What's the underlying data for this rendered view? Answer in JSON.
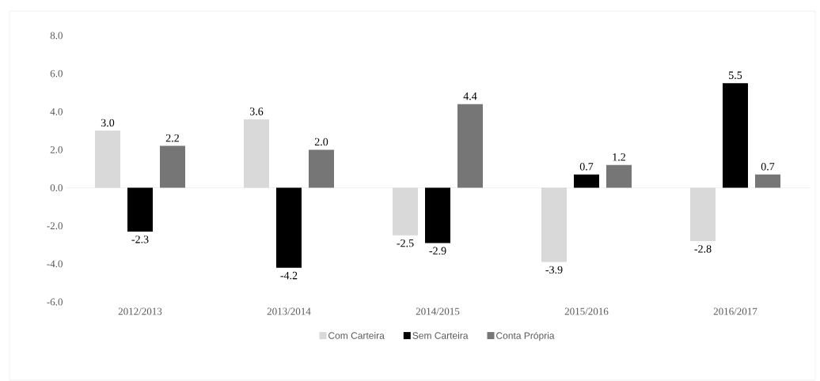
{
  "chart_data": {
    "type": "bar",
    "categories": [
      "2012/2013",
      "2013/2014",
      "2014/2015",
      "2015/2016",
      "2016/2017"
    ],
    "series": [
      {
        "name": "Com Carteira",
        "color": "#d9d9d9",
        "values": [
          3.0,
          3.6,
          -2.5,
          -3.9,
          -2.8
        ],
        "value_labels": [
          "3.0",
          "3.6",
          "-2.5",
          "-3.9",
          "-2.8"
        ]
      },
      {
        "name": "Sem Carteira",
        "color": "#000000",
        "values": [
          -2.3,
          -4.2,
          -2.9,
          0.7,
          5.5
        ],
        "value_labels": [
          "-2.3",
          "-4.2",
          "-2.9",
          "0.7",
          "5.5"
        ]
      },
      {
        "name": "Conta Própria",
        "color": "#767676",
        "values": [
          2.2,
          2.0,
          4.4,
          1.2,
          0.7
        ],
        "value_labels": [
          "2.2",
          "2.0",
          "4.4",
          "1.2",
          "0.7"
        ]
      }
    ],
    "ylim": [
      -6,
      8
    ],
    "yticks": [
      {
        "value": -6,
        "label": "-6.0"
      },
      {
        "value": -4,
        "label": "-4.0"
      },
      {
        "value": -2,
        "label": "-2.0"
      },
      {
        "value": 0,
        "label": "0.0"
      },
      {
        "value": 2,
        "label": "2.0"
      },
      {
        "value": 4,
        "label": "4.0"
      },
      {
        "value": 6,
        "label": "6.0"
      },
      {
        "value": 8,
        "label": "8.0"
      }
    ],
    "ref_lines": [
      {
        "axis": "y",
        "value": 0,
        "color": "#d9d9d9"
      }
    ],
    "legend": "bottom"
  }
}
